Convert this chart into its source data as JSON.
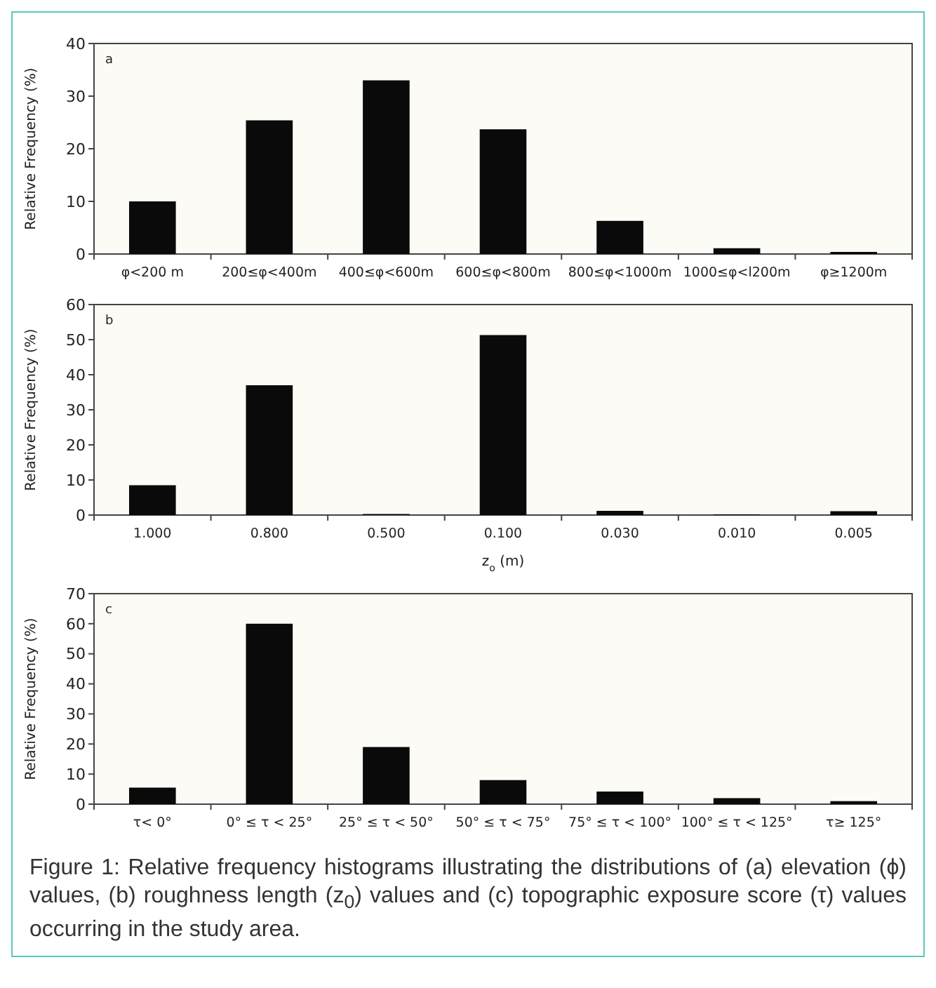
{
  "chart_data": [
    {
      "type": "bar",
      "title": "a",
      "categories": [
        "φ<200 m",
        "200≤φ<400m",
        "400≤φ<600m",
        "600≤φ<800m",
        "800≤φ<1000m",
        "1000≤φ<l200m",
        "φ≥1200m"
      ],
      "values": [
        10,
        25.4,
        33,
        23.7,
        6.3,
        1.1,
        0.4
      ],
      "color": "#0a0a0a",
      "ylabel": "Relative Frequency (%)",
      "ylim": [
        0,
        40
      ],
      "yticks": [
        0,
        10,
        20,
        30,
        40
      ]
    },
    {
      "type": "bar",
      "title": "b",
      "categories": [
        "1.000",
        "0.800",
        "0.500",
        "0.100",
        "0.030",
        "0.010",
        "0.005"
      ],
      "values": [
        8.5,
        37,
        0.3,
        51.3,
        1.2,
        0.2,
        1.1
      ],
      "color": "#0a0a0a",
      "ylabel": "Relative Frequency (%)",
      "xlabel": "z$_{o}$ (m)",
      "ylim": [
        0,
        60
      ],
      "yticks": [
        0,
        10,
        20,
        30,
        40,
        50,
        60
      ]
    },
    {
      "type": "bar",
      "title": "c",
      "categories": [
        "τ< 0°",
        "0° ≤ τ < 25°",
        "25° ≤ τ < 50°",
        "50° ≤ τ < 75°",
        "75° ≤ τ < 100°",
        "100° ≤ τ < 125°",
        "τ≥ 125°"
      ],
      "values": [
        5.5,
        60,
        19,
        8,
        4.2,
        2,
        1
      ],
      "color": "#0a0a0a",
      "ylabel": "Relative Frequency (%)",
      "ylim": [
        0,
        70
      ],
      "yticks": [
        0,
        10,
        20,
        30,
        40,
        50,
        60,
        70
      ],
      "annotations": [
        "Figure 1: Relative frequency histograms illustrating the distributions of (a) elevation (ϕ) values, (b) roughness length (z$_{0}$) values and (c) topographic exposure score (τ) values occurring in the study area."
      ]
    }
  ]
}
